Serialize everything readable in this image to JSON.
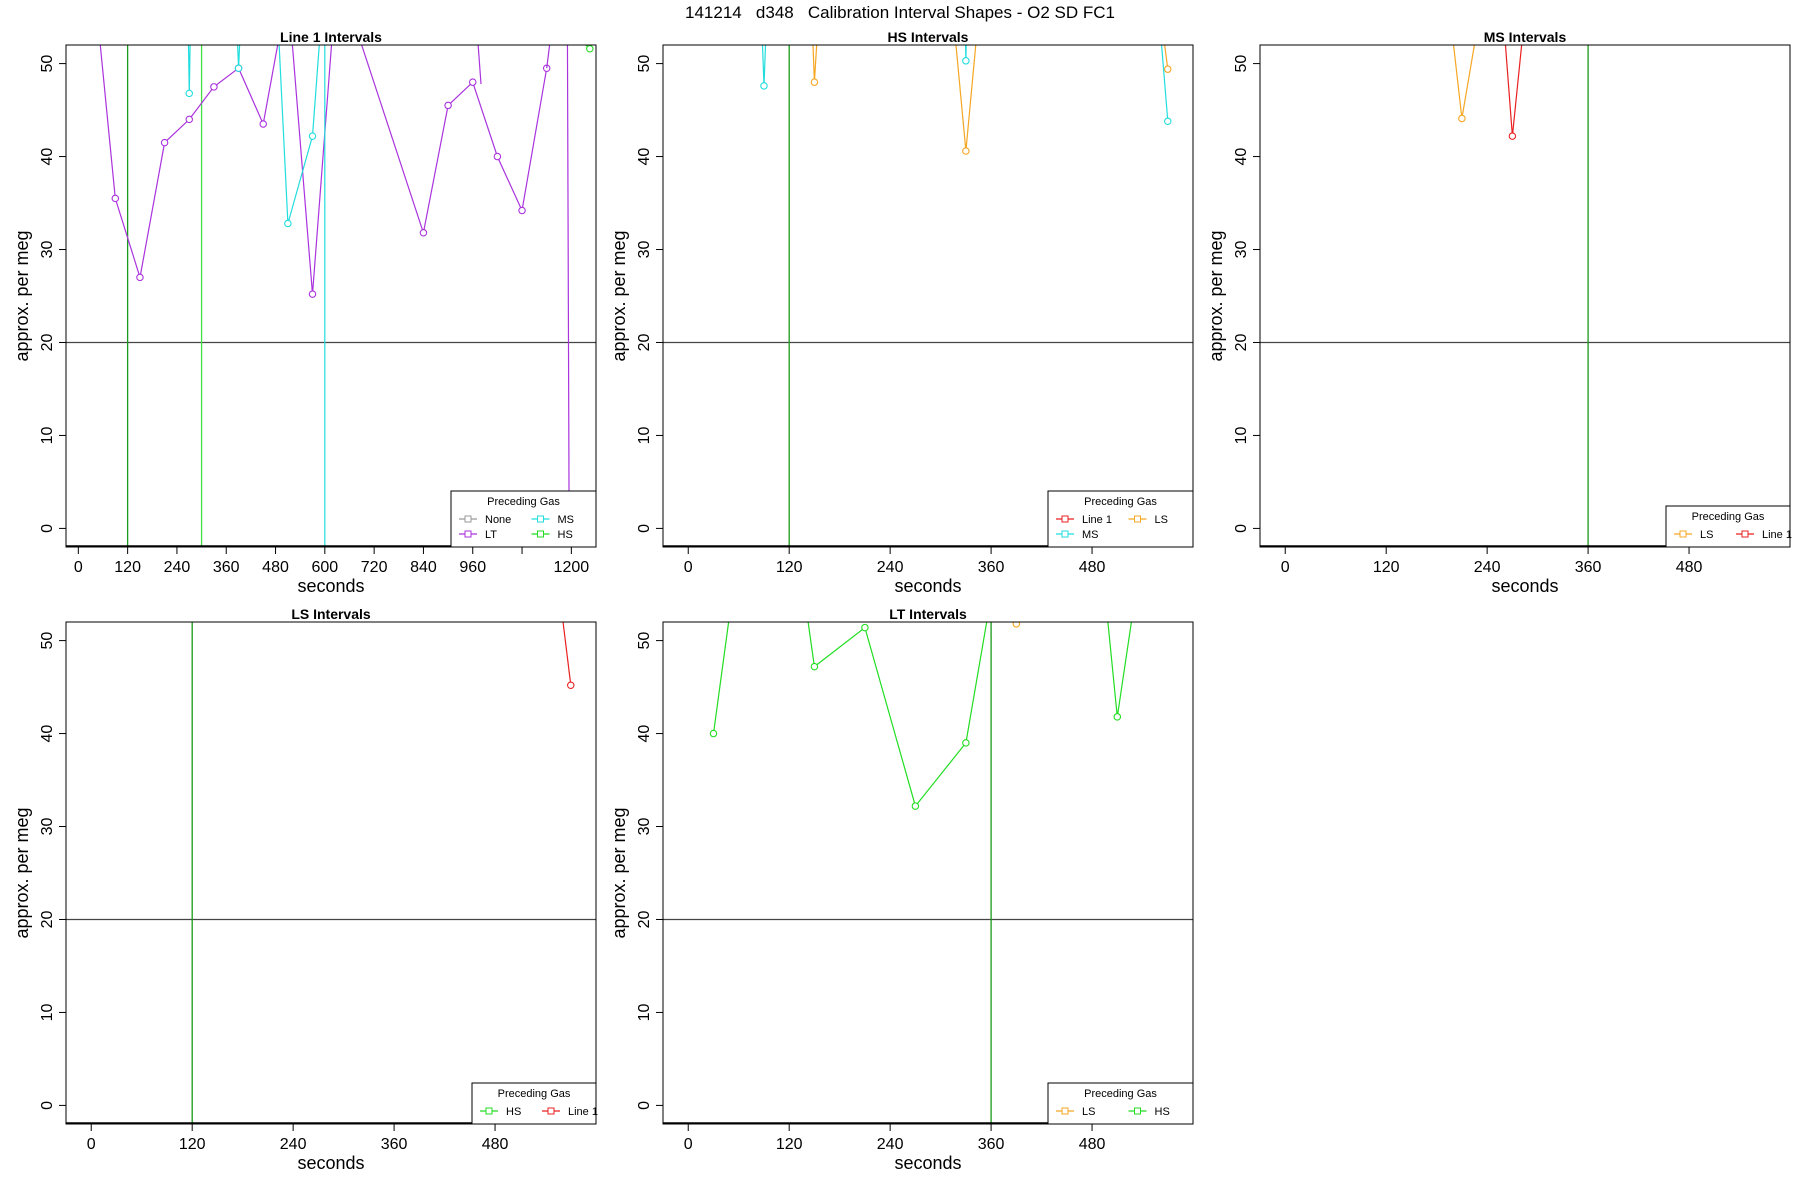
{
  "figure_title": "141214   d348   Calibration Interval Shapes - O2 SD FC1",
  "colors": {
    "None": "#999999",
    "MS": "#22dddd",
    "LT": "#aa33dd",
    "HS": "#22dd22",
    "LS": "#f5a623",
    "Line 1": "#e82020",
    "reference_line": "#444444",
    "vline_default": "#1a9a1a"
  },
  "chart_data": [
    {
      "type": "line",
      "title": "Line 1 Intervals",
      "xlabel": "seconds",
      "ylabel": "approx. per meg",
      "xlim": [
        -30,
        1260
      ],
      "ylim": [
        -2,
        52
      ],
      "x_ticks": [
        0,
        120,
        240,
        360,
        480,
        600,
        720,
        840,
        960,
        1080,
        1200
      ],
      "x_tick_labels": [
        "0",
        "120",
        "240",
        "360",
        "480",
        "600",
        "720",
        "840",
        "960",
        "",
        "1200"
      ],
      "y_ticks": [
        0,
        10,
        20,
        30,
        40,
        50
      ],
      "hline": 20,
      "vlines": [
        {
          "x": 120,
          "color": "#1a9a1a"
        },
        {
          "x": 300,
          "color": "#44dd44"
        }
      ],
      "legend": {
        "title": "Preceding Gas",
        "position": "bottom-right",
        "columns": 2,
        "entries": [
          "None",
          "MS",
          "LT",
          "HS"
        ]
      },
      "series": [
        {
          "name": "LT",
          "color": "#aa33dd",
          "x": [
            40,
            90,
            150,
            210,
            270,
            330,
            390,
            450,
            510,
            570,
            630,
            840,
            900,
            960,
            1020,
            1080,
            1140
          ],
          "y": [
            58,
            35.5,
            27,
            41.5,
            44,
            47.5,
            49.5,
            43.5,
            58,
            25.2,
            60,
            31.8,
            45.5,
            48,
            40,
            34.2,
            49.5
          ],
          "markers": [
            false,
            true,
            true,
            true,
            true,
            true,
            true,
            true,
            false,
            true,
            false,
            true,
            true,
            true,
            true,
            true,
            true
          ]
        },
        {
          "name": "LT",
          "color": "#aa33dd",
          "x": [
            960,
            980
          ],
          "y": [
            60,
            47.8
          ],
          "markers": [
            false,
            false
          ]
        },
        {
          "name": "LT",
          "color": "#aa33dd",
          "x": [
            1140,
            1170,
            1190,
            1195
          ],
          "y": [
            49.5,
            60,
            60,
            -5
          ],
          "markers": [
            false,
            false,
            false,
            false
          ]
        },
        {
          "name": "MS",
          "color": "#22dddd",
          "x": [
            265,
            270,
            275
          ],
          "y": [
            60,
            46.8,
            60
          ],
          "markers": [
            false,
            true,
            false
          ]
        },
        {
          "name": "MS",
          "color": "#22dddd",
          "x": [
            380,
            390,
            400
          ],
          "y": [
            60,
            49.5,
            60
          ],
          "markers": [
            false,
            true,
            false
          ]
        },
        {
          "name": "MS",
          "color": "#22dddd",
          "x": [
            480,
            510,
            570,
            600,
            600
          ],
          "y": [
            60,
            32.8,
            42.2,
            60,
            -5
          ],
          "markers": [
            false,
            true,
            true,
            false,
            false
          ]
        },
        {
          "name": "HS",
          "color": "#22dd22",
          "x": [
            1230,
            1245
          ],
          "y": [
            52.2,
            51.6
          ],
          "markers": [
            false,
            true
          ]
        }
      ]
    },
    {
      "type": "line",
      "title": "HS Intervals",
      "xlabel": "seconds",
      "ylabel": "approx. per meg",
      "xlim": [
        -30,
        600
      ],
      "ylim": [
        -2,
        52
      ],
      "x_ticks": [
        0,
        120,
        240,
        360,
        480
      ],
      "x_tick_labels": [
        "0",
        "120",
        "240",
        "360",
        "480"
      ],
      "y_ticks": [
        0,
        10,
        20,
        30,
        40,
        50
      ],
      "hline": 20,
      "vlines": [
        {
          "x": 120,
          "color": "#1a9a1a"
        }
      ],
      "legend": {
        "title": "Preceding Gas",
        "position": "bottom-right",
        "columns": 2,
        "entries": [
          "Line 1",
          "LS",
          "MS"
        ]
      },
      "series": [
        {
          "name": "MS",
          "color": "#22dddd",
          "x": [
            85,
            90,
            95
          ],
          "y": [
            60,
            47.6,
            60
          ],
          "markers": [
            false,
            true,
            false
          ]
        },
        {
          "name": "LS",
          "color": "#f5a623",
          "x": [
            145,
            150,
            158
          ],
          "y": [
            60,
            48,
            60
          ],
          "markers": [
            false,
            true,
            false
          ]
        },
        {
          "name": "LS",
          "color": "#f5a623",
          "x": [
            310,
            330,
            350
          ],
          "y": [
            60,
            40.6,
            60
          ],
          "markers": [
            false,
            true,
            false
          ]
        },
        {
          "name": "MS",
          "color": "#22dddd",
          "x": [
            328,
            330,
            332
          ],
          "y": [
            60,
            50.3,
            60
          ],
          "markers": [
            false,
            true,
            false
          ]
        },
        {
          "name": "MS",
          "color": "#22dddd",
          "x": [
            560,
            570
          ],
          "y": [
            55,
            43.8
          ],
          "markers": [
            false,
            true
          ]
        },
        {
          "name": "LS",
          "color": "#f5a623",
          "x": [
            555,
            570
          ],
          "y": [
            60,
            49.4
          ],
          "markers": [
            false,
            true
          ]
        }
      ]
    },
    {
      "type": "line",
      "title": "MS Intervals",
      "xlabel": "seconds",
      "ylabel": "approx. per meg",
      "xlim": [
        -30,
        600
      ],
      "ylim": [
        -2,
        52
      ],
      "x_ticks": [
        0,
        120,
        240,
        360,
        480
      ],
      "x_tick_labels": [
        "0",
        "120",
        "240",
        "360",
        "480"
      ],
      "y_ticks": [
        0,
        10,
        20,
        30,
        40,
        50
      ],
      "hline": 20,
      "vlines": [
        {
          "x": 360,
          "color": "#1a9a1a"
        }
      ],
      "legend": {
        "title": "Preceding Gas",
        "position": "bottom-right",
        "columns": 2,
        "entries": [
          "LS",
          "Line 1"
        ]
      },
      "series": [
        {
          "name": "LS",
          "color": "#f5a623",
          "x": [
            190,
            210,
            240
          ],
          "y": [
            60,
            44.1,
            60
          ],
          "markers": [
            false,
            true,
            false
          ]
        },
        {
          "name": "Line 1",
          "color": "#e82020",
          "x": [
            255,
            270,
            290
          ],
          "y": [
            60,
            42.2,
            60
          ],
          "markers": [
            false,
            true,
            false
          ]
        }
      ]
    },
    {
      "type": "line",
      "title": "LS Intervals",
      "xlabel": "seconds",
      "ylabel": "approx. per meg",
      "xlim": [
        -30,
        600
      ],
      "ylim": [
        -2,
        52
      ],
      "x_ticks": [
        0,
        120,
        240,
        360,
        480
      ],
      "x_tick_labels": [
        "0",
        "120",
        "240",
        "360",
        "480"
      ],
      "y_ticks": [
        0,
        10,
        20,
        30,
        40,
        50
      ],
      "hline": 20,
      "vlines": [
        {
          "x": 120,
          "color": "#1a9a1a"
        }
      ],
      "legend": {
        "title": "Preceding Gas",
        "position": "bottom-right",
        "columns": 2,
        "entries": [
          "HS",
          "Line 1"
        ]
      },
      "series": [
        {
          "name": "Line 1",
          "color": "#e82020",
          "x": [
            550,
            570
          ],
          "y": [
            60,
            45.2
          ],
          "markers": [
            false,
            true
          ]
        }
      ]
    },
    {
      "type": "line",
      "title": "LT Intervals",
      "xlabel": "seconds",
      "ylabel": "approx. per meg",
      "xlim": [
        -30,
        600
      ],
      "ylim": [
        -2,
        52
      ],
      "x_ticks": [
        0,
        120,
        240,
        360,
        480
      ],
      "x_tick_labels": [
        "0",
        "120",
        "240",
        "360",
        "480"
      ],
      "y_ticks": [
        0,
        10,
        20,
        30,
        40,
        50
      ],
      "hline": 20,
      "vlines": [
        {
          "x": 360,
          "color": "#1a9a1a"
        }
      ],
      "legend": {
        "title": "Preceding Gas",
        "position": "bottom-right",
        "columns": 2,
        "entries": [
          "LS",
          "HS"
        ]
      },
      "series": [
        {
          "name": "HS",
          "color": "#22dd22",
          "x": [
            30,
            60
          ],
          "y": [
            40,
            60
          ],
          "markers": [
            true,
            false
          ]
        },
        {
          "name": "HS",
          "color": "#22dd22",
          "x": [
            130,
            150,
            210,
            270,
            330,
            370
          ],
          "y": [
            60,
            47.2,
            51.4,
            32.2,
            39,
            60
          ],
          "markers": [
            false,
            true,
            true,
            true,
            true,
            false
          ]
        },
        {
          "name": "LS",
          "color": "#f5a623",
          "x": [
            385,
            390,
            395
          ],
          "y": [
            60,
            51.8,
            60
          ],
          "markers": [
            false,
            true,
            false
          ]
        },
        {
          "name": "HS",
          "color": "#22dd22",
          "x": [
            490,
            510,
            540
          ],
          "y": [
            60,
            41.8,
            60
          ],
          "markers": [
            false,
            true,
            false
          ]
        }
      ]
    }
  ]
}
